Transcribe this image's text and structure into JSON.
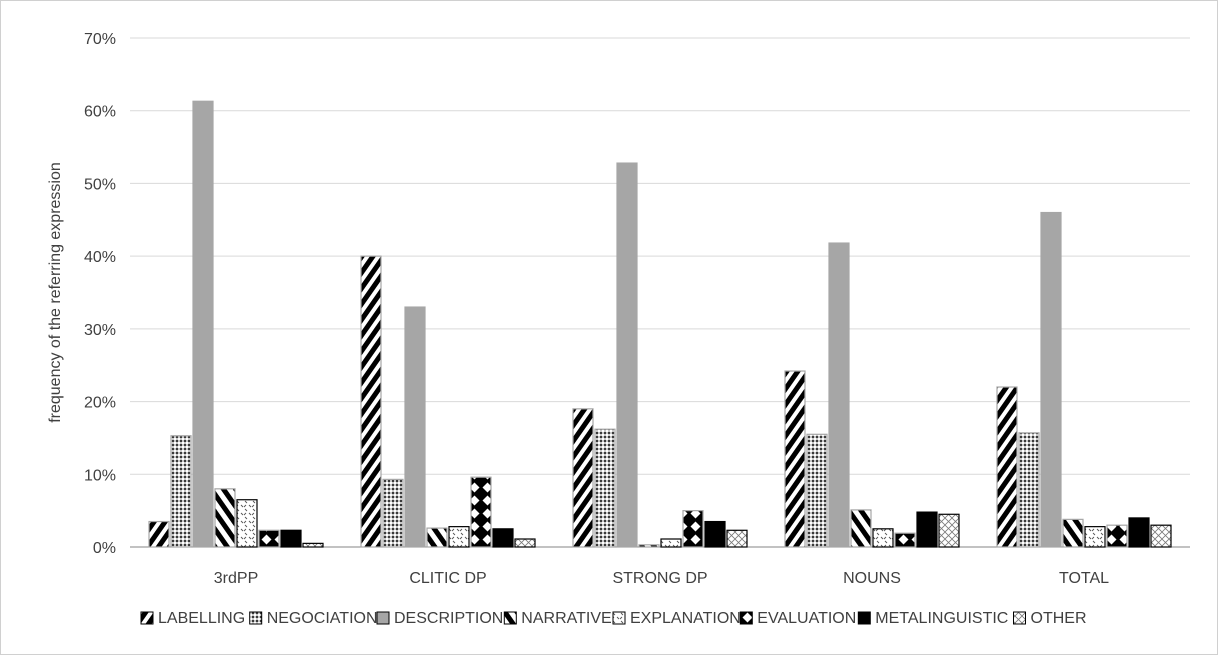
{
  "chart_data": {
    "type": "bar",
    "title": "",
    "xlabel": "",
    "ylabel": "frequency of the referring expression",
    "ylim": [
      0,
      70
    ],
    "yticks": [
      "0%",
      "10%",
      "20%",
      "30%",
      "40%",
      "50%",
      "60%",
      "70%"
    ],
    "grid": true,
    "legend_position": "bottom",
    "categories": [
      "3rdPP",
      "CLITIC DP",
      "STRONG DP",
      "NOUNS",
      "TOTAL"
    ],
    "series": [
      {
        "name": "LABELLING",
        "values": [
          3.5,
          40,
          19,
          24.2,
          22
        ]
      },
      {
        "name": "NEGOCIATION",
        "values": [
          15.3,
          9.3,
          16.2,
          15.5,
          15.7
        ]
      },
      {
        "name": "DESCRIPTION",
        "values": [
          61.3,
          33,
          52.8,
          41.8,
          46
        ]
      },
      {
        "name": "NARRATIVE",
        "values": [
          8,
          2.6,
          0.3,
          5.1,
          3.8
        ]
      },
      {
        "name": "EXPLANATION",
        "values": [
          6.5,
          2.8,
          1.1,
          2.5,
          2.8
        ]
      },
      {
        "name": "EVALUATION",
        "values": [
          2.3,
          9.6,
          5,
          1.9,
          3
        ]
      },
      {
        "name": "METALINGUISTIC",
        "values": [
          2.3,
          2.5,
          3.5,
          4.8,
          4
        ]
      },
      {
        "name": "OTHER",
        "values": [
          0.5,
          1.1,
          2.3,
          4.5,
          3
        ]
      }
    ]
  }
}
